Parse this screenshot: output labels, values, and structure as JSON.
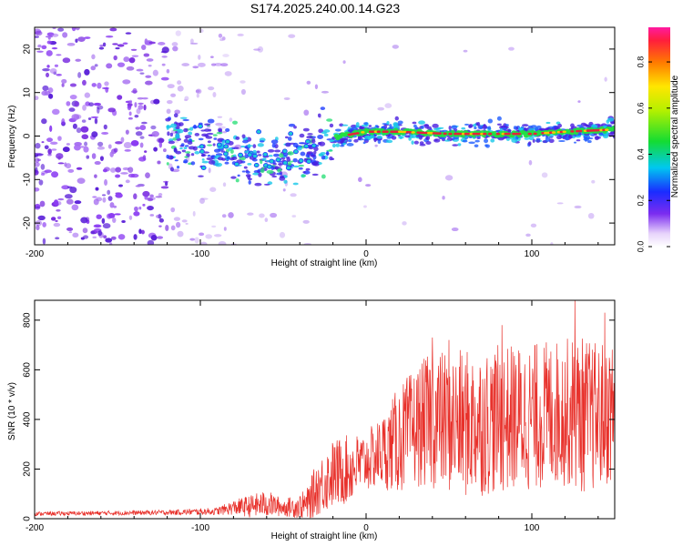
{
  "title": "S174.2025.240.00.14.G23",
  "colors": {
    "snr_line": "#e8312b",
    "ridge": "#e8203a",
    "scatter": "#7a2de0",
    "axis": "#000000"
  },
  "chart_data": [
    {
      "type": "heatmap",
      "name": "spectrogram",
      "xlabel": "Height of straight line (km)",
      "ylabel": "Frequency (Hz)",
      "xlim": [
        -200,
        150
      ],
      "ylim": [
        -25,
        25
      ],
      "xticks": [
        -200,
        -100,
        0,
        100
      ],
      "xtick_labels": [
        "-200",
        "-100",
        "0",
        "100"
      ],
      "yticks": [
        -20,
        -10,
        0,
        10,
        20
      ],
      "ytick_labels": [
        "-20",
        "-10",
        "0",
        "10",
        "20"
      ],
      "ridge": {
        "x": [
          -120,
          -100,
          -80,
          -60,
          -45,
          -35,
          -25,
          -15,
          0,
          20,
          50,
          80,
          100,
          120,
          150
        ],
        "y": [
          0,
          -2,
          -4,
          -6,
          -5,
          -4,
          -1,
          0,
          1,
          1,
          0.5,
          0.5,
          0.5,
          1,
          1.5
        ]
      },
      "colorbar": {
        "label": "Normalized spectral amplitude",
        "range": [
          0,
          0.95
        ],
        "ticks": [
          0.0,
          0.2,
          0.4,
          0.6,
          0.8
        ],
        "tick_labels": [
          "0.0",
          "0.2",
          "0.4",
          "0.6",
          "0.8"
        ]
      }
    },
    {
      "type": "line",
      "name": "snr",
      "xlabel": "Height of straight line (km)",
      "ylabel": "SNR (10 * v/v)",
      "xlim": [
        -200,
        150
      ],
      "ylim": [
        0,
        880
      ],
      "xticks": [
        -200,
        -100,
        0,
        100
      ],
      "xtick_labels": [
        "-200",
        "-100",
        "0",
        "100"
      ],
      "yticks": [
        0,
        200,
        400,
        600,
        800
      ],
      "ytick_labels": [
        "0",
        "200",
        "400",
        "600",
        "800"
      ],
      "envelope": {
        "x": [
          -200,
          -120,
          -90,
          -80,
          -70,
          -60,
          -50,
          -40,
          -35,
          -30,
          -20,
          -10,
          0,
          10,
          20,
          30,
          40,
          60,
          80,
          100,
          120,
          130,
          140,
          150
        ],
        "mean": [
          20,
          25,
          30,
          45,
          50,
          60,
          45,
          50,
          60,
          120,
          180,
          200,
          230,
          270,
          320,
          370,
          400,
          380,
          400,
          410,
          430,
          420,
          410,
          440
        ],
        "spread": [
          8,
          10,
          15,
          30,
          45,
          55,
          35,
          50,
          70,
          110,
          140,
          140,
          120,
          150,
          220,
          240,
          280,
          300,
          300,
          300,
          300,
          320,
          300,
          300
        ]
      },
      "peaks": [
        {
          "x": 126,
          "y": 880
        },
        {
          "x": 144,
          "y": 830
        },
        {
          "x": 82,
          "y": 780
        },
        {
          "x": 50,
          "y": 720
        },
        {
          "x": 40,
          "y": 730
        }
      ]
    }
  ]
}
